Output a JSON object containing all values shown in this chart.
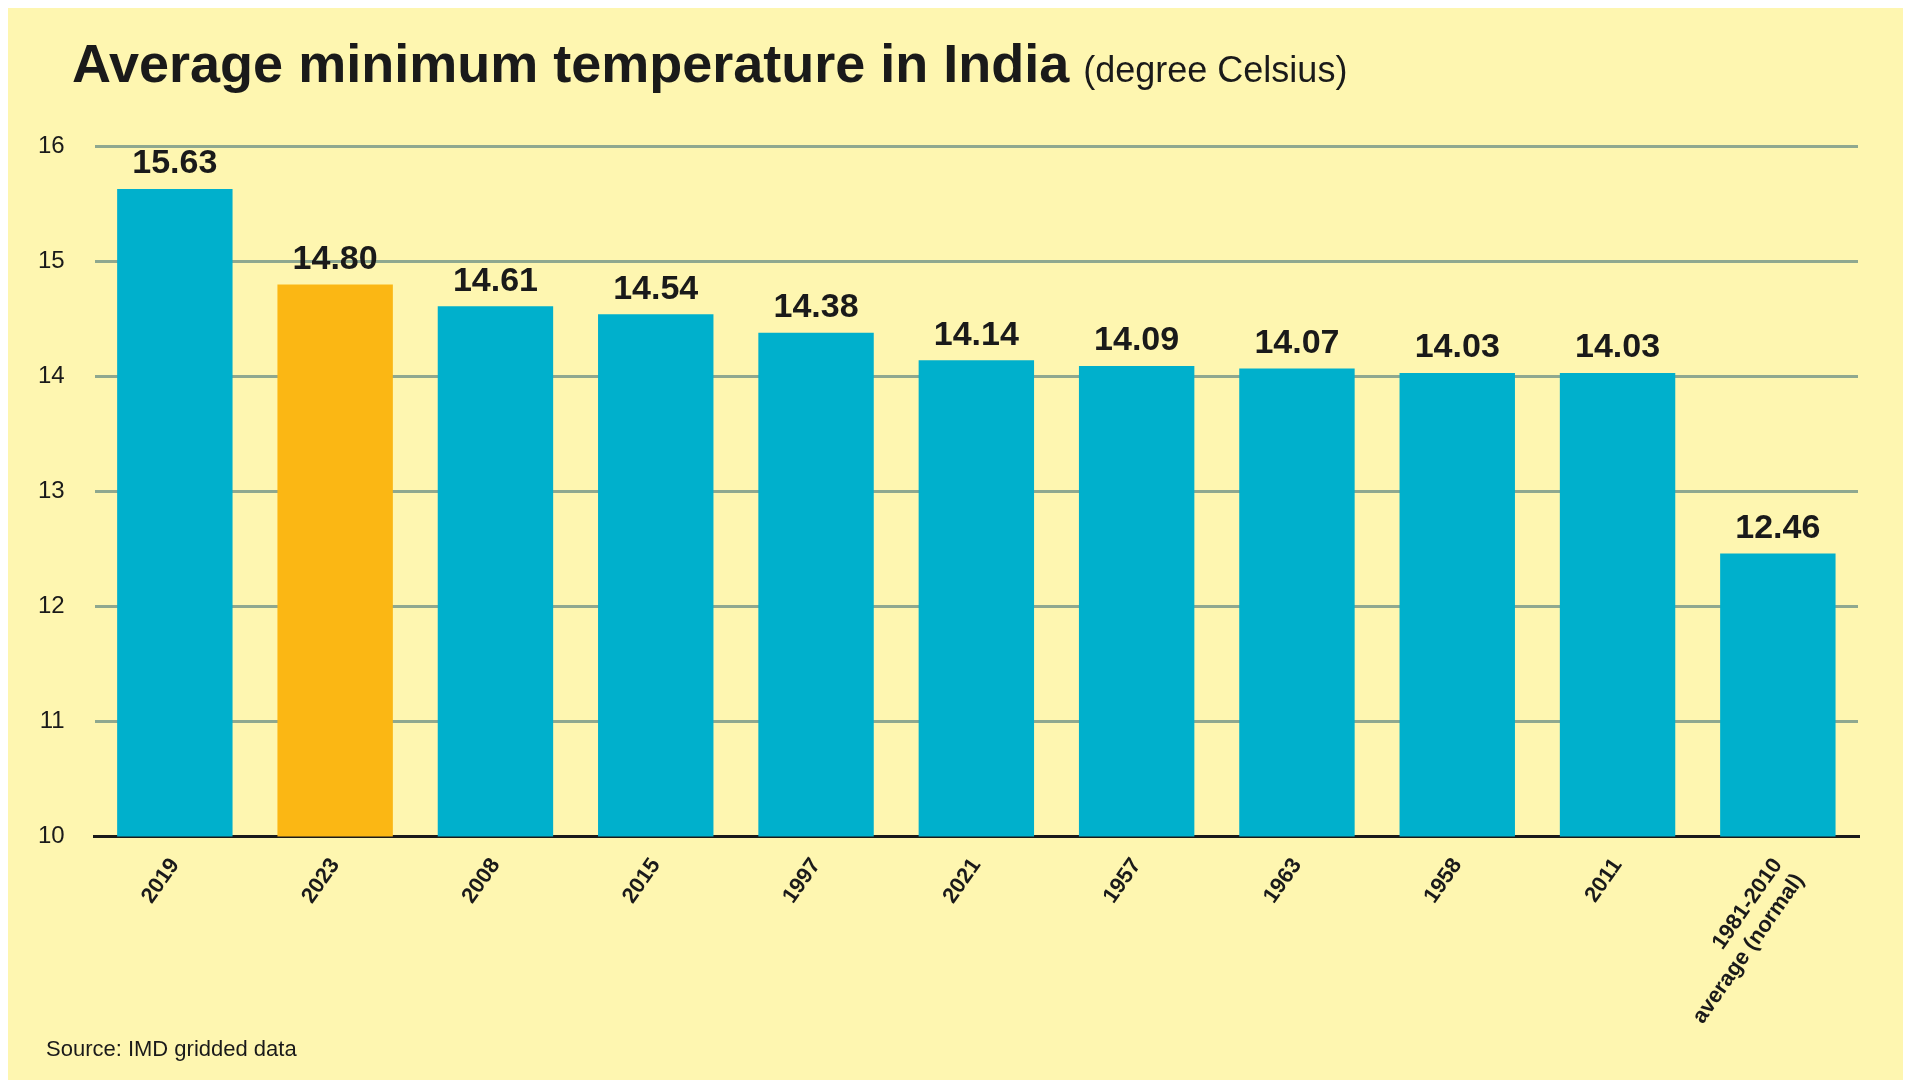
{
  "chart_data": {
    "type": "bar",
    "title": "Average minimum temperature in India",
    "subtitle": "(degree Celsius)",
    "categories": [
      "2019",
      "2023",
      "2008",
      "2015",
      "1997",
      "2021",
      "1957",
      "1963",
      "1958",
      "2011",
      "1981-2010\naverage (normal)"
    ],
    "values": [
      15.63,
      14.8,
      14.61,
      14.54,
      14.38,
      14.14,
      14.09,
      14.07,
      14.03,
      14.03,
      12.46
    ],
    "value_labels": [
      "15.63",
      "14.80",
      "14.61",
      "14.54",
      "14.38",
      "14.14",
      "14.09",
      "14.07",
      "14.03",
      "14.03",
      "12.46"
    ],
    "colors": [
      "#00b0cc",
      "#fbb714",
      "#00b0cc",
      "#00b0cc",
      "#00b0cc",
      "#00b0cc",
      "#00b0cc",
      "#00b0cc",
      "#00b0cc",
      "#00b0cc",
      "#00b0cc"
    ],
    "ylim": [
      10,
      16
    ],
    "yticks": [
      10,
      11,
      12,
      13,
      14,
      15,
      16
    ],
    "grid": "y",
    "legend": false,
    "annotations": [
      "Source: IMD gridded data"
    ]
  }
}
